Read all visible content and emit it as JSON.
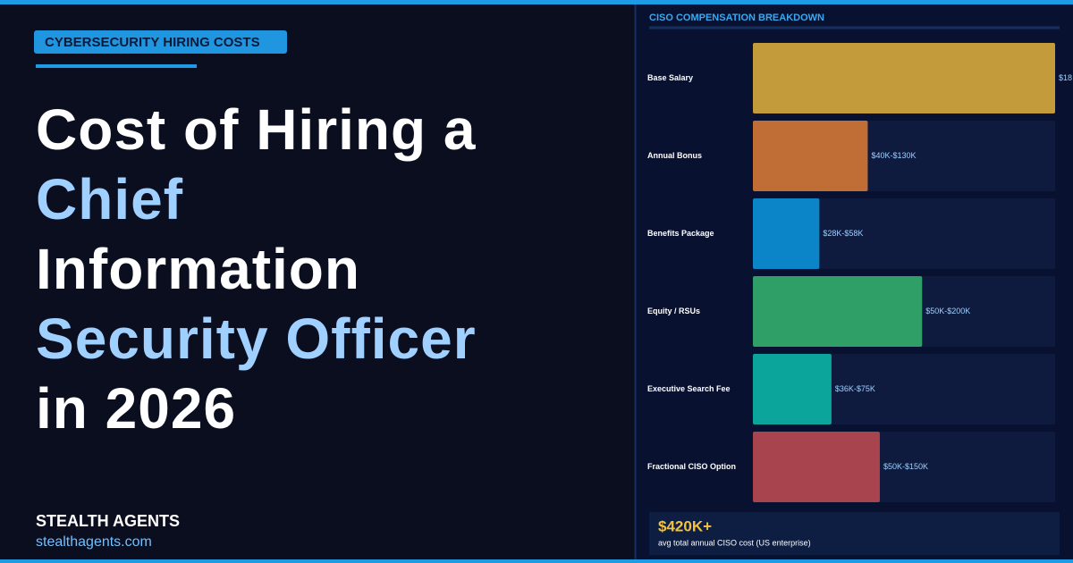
{
  "tag": "CYBERSECURITY HIRING COSTS",
  "headline": [
    {
      "text": "Cost of Hiring a",
      "highlight": false
    },
    {
      "text": "Chief",
      "highlight": true
    },
    {
      "text": "Information",
      "highlight": false
    },
    {
      "text": "Security Officer",
      "highlight": true
    },
    {
      "text": "in 2026",
      "highlight": false
    }
  ],
  "brand": {
    "name": "STEALTH AGENTS",
    "url": "stealthagents.com"
  },
  "chart_data": {
    "type": "bar",
    "orientation": "horizontal",
    "title": "CISO COMPENSATION BREAKDOWN",
    "categories": [
      "Base Salary",
      "Annual Bonus",
      "Benefits Package",
      "Equity / RSUs",
      "Executive Search Fee",
      "Fractional CISO Option"
    ],
    "values": [
      100,
      38,
      22,
      56,
      26,
      42
    ],
    "range_labels": [
      "$18",
      "$40K-$130K",
      "$28K-$58K",
      "$50K-$200K",
      "$36K-$75K",
      "$50K-$150K"
    ],
    "colors": [
      "#c49b3b",
      "#c06e36",
      "#0b84c8",
      "#2f9e67",
      "#0ba59b",
      "#a8444e"
    ],
    "xlim": [
      0,
      100
    ]
  },
  "summary": {
    "value": "$420K+",
    "caption": "avg total annual CISO cost (US enterprise)"
  }
}
